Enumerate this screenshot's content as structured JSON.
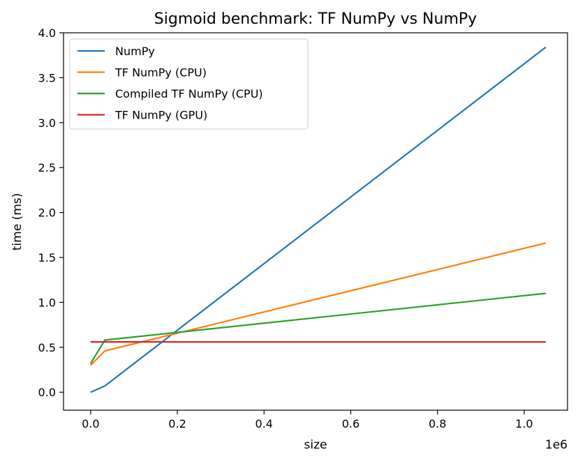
{
  "chart_data": {
    "type": "line",
    "title": "Sigmoid benchmark: TF NumPy vs NumPy",
    "xlabel": "size",
    "ylabel": "time (ms)",
    "x_offset_text": "1e6",
    "xlim": [
      -0.0625,
      1.1
    ],
    "ylim": [
      -0.2,
      4.0
    ],
    "xticks": [
      0.0,
      0.2,
      0.4,
      0.6,
      0.8,
      1.0
    ],
    "xtick_labels": [
      "0.0",
      "0.2",
      "0.4",
      "0.6",
      "0.8",
      "1.0"
    ],
    "yticks": [
      0.0,
      0.5,
      1.0,
      1.5,
      2.0,
      2.5,
      3.0,
      3.5,
      4.0
    ],
    "ytick_labels": [
      "0.0",
      "0.5",
      "1.0",
      "1.5",
      "2.0",
      "2.5",
      "3.0",
      "3.5",
      "4.0"
    ],
    "grid": false,
    "legend_position": "upper-left",
    "x": [
      0,
      0.0328,
      1.05
    ],
    "series": [
      {
        "name": "NumPy",
        "color": "#1f77b4",
        "values": [
          0.0,
          0.07,
          3.84
        ]
      },
      {
        "name": "TF NumPy (CPU)",
        "color": "#ff7f0e",
        "values": [
          0.3,
          0.46,
          1.66
        ]
      },
      {
        "name": "Compiled TF NumPy (CPU)",
        "color": "#2ca02c",
        "values": [
          0.32,
          0.58,
          1.1
        ]
      },
      {
        "name": "TF NumPy (GPU)",
        "color": "#d62728",
        "values": [
          0.56,
          0.56,
          0.56
        ]
      }
    ]
  }
}
